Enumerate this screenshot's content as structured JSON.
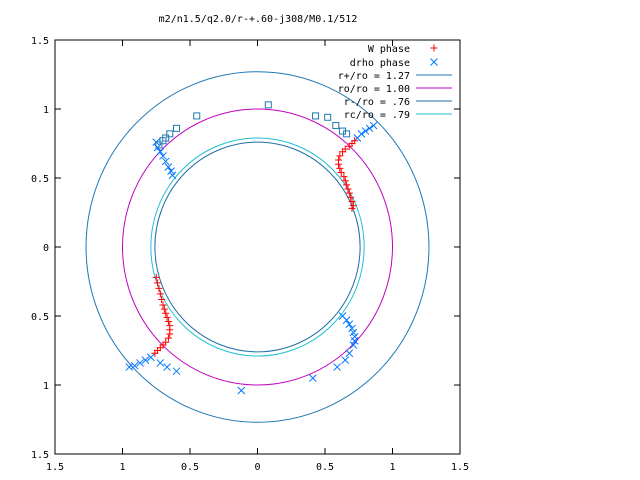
{
  "chart_data": {
    "type": "scatter",
    "title": "m2/n1.5/q2.0/r-+.60-j308/M0.1/512",
    "xlabel": "",
    "ylabel": "",
    "xlim": [
      -1.5,
      1.5
    ],
    "ylim": [
      -1.5,
      1.5
    ],
    "x_ticks": [
      -1.5,
      -1,
      -0.5,
      0,
      0.5,
      1,
      1.5
    ],
    "x_tick_labels": [
      "1.5",
      "1",
      "0.5",
      "0",
      "0.5",
      "1",
      "1.5"
    ],
    "y_ticks": [
      1.5,
      1,
      0.5,
      0,
      -0.5,
      -1,
      -1.5
    ],
    "y_tick_labels": [
      "1.5",
      "1",
      "0.5",
      "0",
      "0.5",
      "1",
      "1.5"
    ],
    "grid": false,
    "legend_position": "top-right",
    "circles": [
      {
        "name": "r+/ro = 1.27",
        "radius": 1.27,
        "color": "#1f77b4"
      },
      {
        "name": "ro/ro = 1.00",
        "radius": 1.0,
        "color": "#c000c0"
      },
      {
        "name": "r-/ro = .76",
        "radius": 0.76,
        "color": "#1f6fa8"
      },
      {
        "name": "rc/ro = .79",
        "radius": 0.79,
        "color": "#20c0d0"
      }
    ],
    "series": [
      {
        "name": "W phase",
        "marker": "plus",
        "color": "#ff0000",
        "values": [
          [
            0.7,
            0.28
          ],
          [
            0.71,
            0.3
          ],
          [
            0.7,
            0.33
          ],
          [
            0.69,
            0.36
          ],
          [
            0.68,
            0.39
          ],
          [
            0.67,
            0.42
          ],
          [
            0.66,
            0.45
          ],
          [
            0.65,
            0.48
          ],
          [
            0.64,
            0.51
          ],
          [
            0.62,
            0.54
          ],
          [
            0.61,
            0.57
          ],
          [
            0.6,
            0.6
          ],
          [
            0.6,
            0.63
          ],
          [
            0.61,
            0.66
          ],
          [
            0.63,
            0.69
          ],
          [
            0.65,
            0.71
          ],
          [
            0.68,
            0.73
          ],
          [
            0.7,
            0.75
          ],
          [
            0.72,
            0.77
          ],
          [
            -0.75,
            -0.22
          ],
          [
            -0.74,
            -0.26
          ],
          [
            -0.73,
            -0.3
          ],
          [
            -0.72,
            -0.34
          ],
          [
            -0.71,
            -0.38
          ],
          [
            -0.7,
            -0.42
          ],
          [
            -0.69,
            -0.45
          ],
          [
            -0.68,
            -0.48
          ],
          [
            -0.67,
            -0.51
          ],
          [
            -0.66,
            -0.54
          ],
          [
            -0.65,
            -0.57
          ],
          [
            -0.65,
            -0.6
          ],
          [
            -0.65,
            -0.63
          ],
          [
            -0.66,
            -0.66
          ],
          [
            -0.68,
            -0.69
          ],
          [
            -0.7,
            -0.71
          ],
          [
            -0.72,
            -0.73
          ],
          [
            -0.74,
            -0.75
          ],
          [
            -0.76,
            -0.77
          ]
        ]
      },
      {
        "name": "drho phase",
        "marker": "cross",
        "color": "#0077ff",
        "values": [
          [
            -0.75,
            0.76
          ],
          [
            -0.74,
            0.72
          ],
          [
            -0.72,
            0.69
          ],
          [
            -0.7,
            0.66
          ],
          [
            -0.68,
            0.62
          ],
          [
            -0.66,
            0.58
          ],
          [
            -0.64,
            0.55
          ],
          [
            -0.63,
            0.52
          ],
          [
            0.74,
            0.79
          ],
          [
            0.77,
            0.82
          ],
          [
            0.8,
            0.84
          ],
          [
            0.83,
            0.86
          ],
          [
            0.86,
            0.88
          ],
          [
            0.63,
            -0.5
          ],
          [
            0.66,
            -0.53
          ],
          [
            0.68,
            -0.56
          ],
          [
            0.7,
            -0.59
          ],
          [
            0.71,
            -0.62
          ],
          [
            0.72,
            -0.65
          ],
          [
            0.72,
            -0.68
          ],
          [
            0.71,
            -0.71
          ],
          [
            -0.79,
            -0.8
          ],
          [
            -0.83,
            -0.82
          ],
          [
            -0.87,
            -0.84
          ],
          [
            -0.91,
            -0.86
          ],
          [
            -0.95,
            -0.87
          ],
          [
            -0.72,
            -0.84
          ],
          [
            -0.67,
            -0.87
          ],
          [
            -0.6,
            -0.9
          ],
          [
            -0.12,
            -1.04
          ],
          [
            0.41,
            -0.95
          ],
          [
            0.59,
            -0.87
          ],
          [
            0.65,
            -0.82
          ],
          [
            0.68,
            -0.77
          ]
        ]
      },
      {
        "name": "",
        "marker": "square",
        "color": "#1f77b4",
        "values": [
          [
            0.08,
            1.03
          ],
          [
            0.43,
            0.95
          ],
          [
            -0.45,
            0.95
          ],
          [
            -0.6,
            0.86
          ],
          [
            -0.65,
            0.82
          ],
          [
            -0.68,
            0.79
          ],
          [
            -0.7,
            0.77
          ],
          [
            -0.73,
            0.74
          ],
          [
            0.52,
            0.94
          ],
          [
            0.58,
            0.88
          ],
          [
            0.63,
            0.84
          ],
          [
            0.66,
            0.82
          ]
        ]
      }
    ]
  }
}
